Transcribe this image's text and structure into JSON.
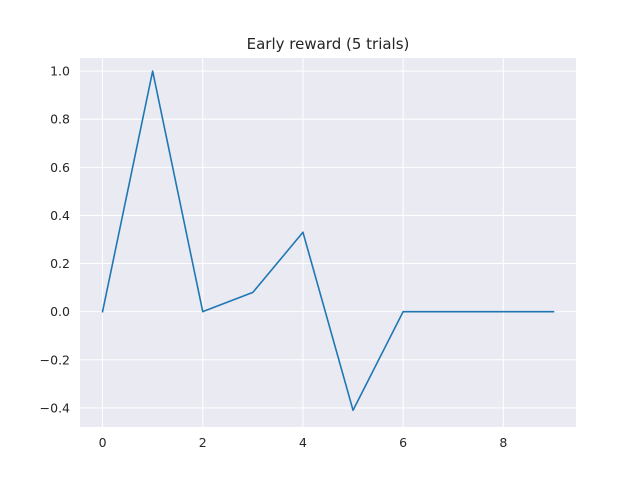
{
  "chart_data": {
    "type": "line",
    "title": "Early reward (5 trials)",
    "xlabel": "",
    "ylabel": "",
    "xlim": [
      -0.45,
      9.45
    ],
    "ylim": [
      -0.4795,
      1.0545
    ],
    "xticks": [
      0,
      2,
      4,
      6,
      8
    ],
    "yticks": [
      -0.4,
      -0.2,
      0.0,
      0.2,
      0.4,
      0.6,
      0.8,
      1.0
    ],
    "xtick_labels": [
      "0",
      "2",
      "4",
      "6",
      "8"
    ],
    "ytick_labels": [
      "−0.4",
      "−0.2",
      "0.0",
      "0.2",
      "0.4",
      "0.6",
      "0.8",
      "1.0"
    ],
    "grid": true,
    "series": [
      {
        "x": [
          0,
          1,
          2,
          3,
          4,
          5,
          6,
          7,
          8,
          9
        ],
        "values": [
          0.0,
          1.0,
          0.0,
          0.08,
          0.33,
          -0.41,
          0.0,
          0.0,
          0.0,
          0.0
        ]
      }
    ],
    "colors": {
      "line": "#1f77b4",
      "plot_background": "#eaeaf2",
      "grid": "#ffffff"
    }
  }
}
